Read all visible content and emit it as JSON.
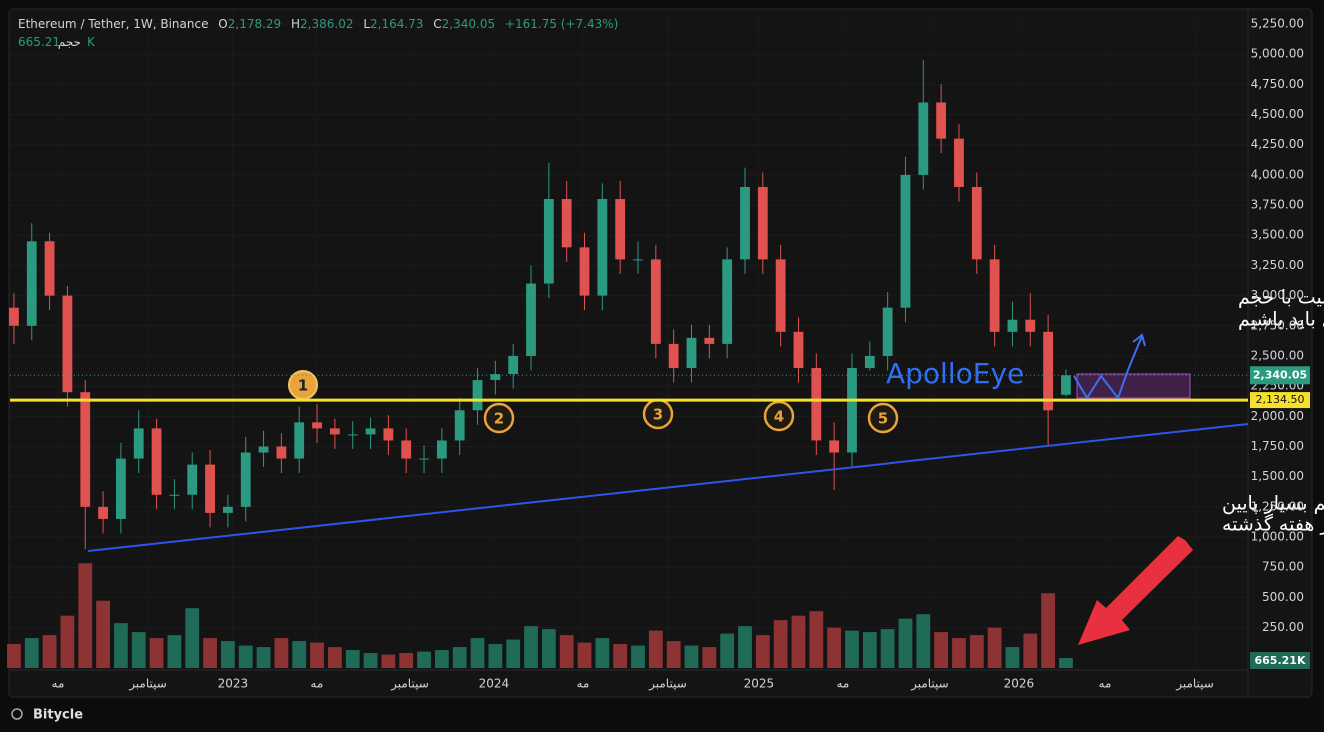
{
  "chart_data": {
    "type": "candlestick",
    "header": {
      "symbol": "Ethereum / Tether, 1W, Binance",
      "o_key": "O",
      "o": "2,178.29",
      "h_key": "H",
      "h": "2,386.02",
      "l_key": "L",
      "l": "2,164.73",
      "c_key": "C",
      "c": "2,340.05",
      "change": "+161.75 (+7.43%)",
      "volume_key": "حجم",
      "volume": "665.21K"
    },
    "up_color": "#2b9a80",
    "down_color": "#e0524f",
    "volume_up_color": "#1f6b58",
    "volume_down_color": "#8d3333",
    "open": [
      2900,
      2750,
      3450,
      3000,
      2200,
      1250,
      1150,
      1650,
      1900,
      1350,
      1350,
      1600,
      1200,
      1250,
      1700,
      1750,
      1650,
      1950,
      1900,
      1850,
      1850,
      1900,
      1800,
      1650,
      1650,
      1800,
      2050,
      2300,
      2350,
      2500,
      3100,
      3800,
      3400,
      3000,
      3800,
      3300,
      3300,
      2600,
      2400,
      2650,
      2600,
      3300,
      3900,
      3300,
      2700,
      2400,
      1800,
      1700,
      2400,
      2500,
      2900,
      4000,
      4600,
      4300,
      3900,
      3300,
      2700,
      2800,
      2700,
      2178.29
    ],
    "high": [
      3020,
      3600,
      3520,
      3080,
      2300,
      1380,
      1780,
      2050,
      1980,
      1480,
      1700,
      1720,
      1350,
      1830,
      1880,
      1860,
      2080,
      2100,
      1980,
      1960,
      1990,
      2010,
      1900,
      1760,
      1900,
      2150,
      2400,
      2460,
      2600,
      3250,
      4100,
      3950,
      3520,
      3930,
      3950,
      3450,
      3420,
      2720,
      2760,
      2760,
      3400,
      4060,
      4020,
      3420,
      2820,
      2520,
      1950,
      2520,
      2620,
      3030,
      4150,
      4950,
      4750,
      4420,
      4020,
      3420,
      2950,
      3020,
      2840,
      2386.02
    ],
    "low": [
      2600,
      2630,
      2880,
      2080,
      900,
      1030,
      1030,
      1530,
      1230,
      1230,
      1230,
      1080,
      1080,
      1130,
      1580,
      1530,
      1530,
      1780,
      1730,
      1730,
      1730,
      1680,
      1530,
      1530,
      1530,
      1680,
      1930,
      2180,
      2230,
      2380,
      2980,
      3280,
      2880,
      2880,
      3180,
      3180,
      2480,
      2280,
      2280,
      2480,
      2480,
      3180,
      3180,
      2580,
      2280,
      1680,
      1390,
      1580,
      2380,
      2380,
      2780,
      3880,
      4180,
      3780,
      3180,
      2580,
      2580,
      2580,
      1750,
      2164.73
    ],
    "close": [
      2750,
      3450,
      3000,
      2200,
      1250,
      1150,
      1650,
      1900,
      1350,
      1350,
      1600,
      1200,
      1250,
      1700,
      1750,
      1650,
      1950,
      1900,
      1850,
      1850,
      1900,
      1800,
      1650,
      1650,
      1800,
      2050,
      2300,
      2350,
      2500,
      3100,
      3800,
      3400,
      3000,
      3800,
      3300,
      3300,
      2600,
      2400,
      2650,
      2600,
      3300,
      3900,
      3300,
      2700,
      2400,
      1800,
      1700,
      2400,
      2500,
      2900,
      4000,
      4600,
      4300,
      3900,
      3300,
      2700,
      2800,
      2700,
      2050,
      2340.05
    ],
    "volume": [
      1600000,
      2000000,
      2200000,
      3500000,
      7000000,
      4500000,
      3000000,
      2400000,
      2000000,
      2200000,
      4000000,
      2000000,
      1800000,
      1500000,
      1400000,
      2000000,
      1800000,
      1700000,
      1400000,
      1200000,
      1000000,
      900000,
      1000000,
      1100000,
      1200000,
      1400000,
      2000000,
      1600000,
      1900000,
      2800000,
      2600000,
      2200000,
      1700000,
      2000000,
      1600000,
      1500000,
      2500000,
      1800000,
      1500000,
      1400000,
      2300000,
      2800000,
      2200000,
      3200000,
      3500000,
      3800000,
      2700000,
      2500000,
      2400000,
      2600000,
      3300000,
      3600000,
      2400000,
      2000000,
      2200000,
      2700000,
      1400000,
      2300000,
      5000000,
      665210
    ],
    "last_price_label": "2,340.05",
    "volume_label": "665.21K",
    "hline": {
      "value": 2134.5,
      "label": "2,134.50",
      "color": "#f5e12c"
    },
    "xlim": [
      -0.22,
      69.21
    ],
    "xticks": [
      {
        "value": 2.47,
        "label": "مه"
      },
      {
        "value": 7.52,
        "label": "سپتامبر"
      },
      {
        "value": 12.28,
        "label": "2023"
      },
      {
        "value": 16.99,
        "label": "مه"
      },
      {
        "value": 22.21,
        "label": "سپتامبر"
      },
      {
        "value": 26.92,
        "label": "2024"
      },
      {
        "value": 31.91,
        "label": "مه"
      },
      {
        "value": 36.68,
        "label": "سپتامبر"
      },
      {
        "value": 41.78,
        "label": "2025"
      },
      {
        "value": 46.49,
        "label": "مه"
      },
      {
        "value": 51.37,
        "label": "سپتامبر"
      },
      {
        "value": 56.36,
        "label": "2026"
      },
      {
        "value": 61.19,
        "label": "مه"
      },
      {
        "value": 66.24,
        "label": "سپتامبر"
      }
    ],
    "ylim": [
      -85,
      5366
    ],
    "yticks": [
      {
        "value": 250,
        "label": "250.00"
      },
      {
        "value": 500,
        "label": "500.00"
      },
      {
        "value": 750,
        "label": "750.00"
      },
      {
        "value": 1000,
        "label": "1,000.00"
      },
      {
        "value": 1250,
        "label": "1,250.00"
      },
      {
        "value": 1500,
        "label": "1,500.00"
      },
      {
        "value": 1750,
        "label": "1,750.00"
      },
      {
        "value": 2000,
        "label": "2,000.00"
      },
      {
        "value": 2250,
        "label": "2,250.00"
      },
      {
        "value": 2500,
        "label": "2,500.00"
      },
      {
        "value": 2750,
        "label": "2,750.00"
      },
      {
        "value": 3000,
        "label": "3,000.00"
      },
      {
        "value": 3250,
        "label": "3,250.00"
      },
      {
        "value": 3500,
        "label": "3,500.00"
      },
      {
        "value": 3750,
        "label": "3,750.00"
      },
      {
        "value": 4000,
        "label": "4,000.00"
      },
      {
        "value": 4250,
        "label": "4,250.00"
      },
      {
        "value": 4500,
        "label": "4,500.00"
      },
      {
        "value": 4750,
        "label": "4,750.00"
      },
      {
        "value": 5000,
        "label": "5,000.00"
      },
      {
        "value": 5250,
        "label": "5,250.00"
      }
    ],
    "y2lim": [
      0,
      44000000
    ],
    "annotations": {
      "markers": [
        "1",
        "2",
        "3",
        "4",
        "5"
      ],
      "watermark": "ApolloEye",
      "note_top": [
        "به دنبال تثبیت با حجم",
        "قابل قبول باید باشیم"
      ],
      "note_bottom": [
        "حجم بسیار پایین",
        "در هفته گذشته"
      ]
    },
    "footer": "Bitycle"
  }
}
